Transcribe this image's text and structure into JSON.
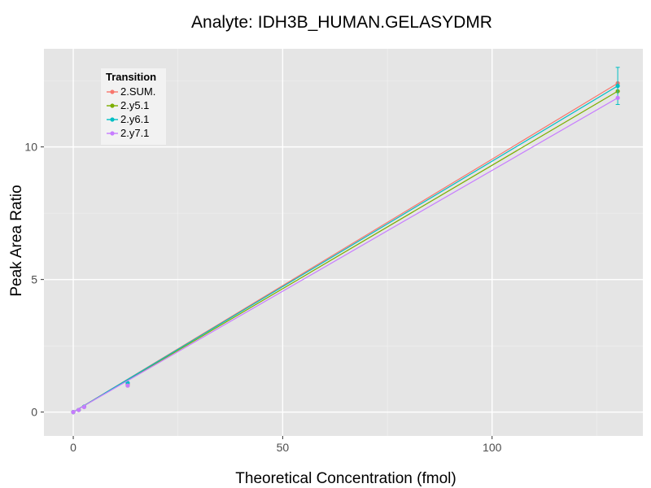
{
  "chart_data": {
    "type": "line",
    "title": "Analyte: IDH3B_HUMAN.GELASYDMR",
    "xlabel": "Theoretical Concentration (fmol)",
    "ylabel": "Peak Area Ratio",
    "xlim": [
      -7,
      136
    ],
    "ylim": [
      -0.9,
      13.7
    ],
    "x_ticks": [
      0,
      50,
      100
    ],
    "y_ticks": [
      0,
      5,
      10
    ],
    "x_tick_labels": [
      "0",
      "50",
      "100"
    ],
    "y_tick_labels": [
      "0",
      "5",
      "10"
    ],
    "grid": true,
    "legend": {
      "title": "Transition",
      "position": "top-left"
    },
    "series": [
      {
        "name": "2.SUM.",
        "color": "#F8766D",
        "x": [
          0,
          1.3,
          2.6,
          13,
          130
        ],
        "y": [
          0.0,
          0.08,
          0.2,
          1.05,
          12.4
        ],
        "fit_end": 12.4,
        "error": [
          null,
          null,
          null,
          null,
          0.0
        ]
      },
      {
        "name": "2.y5.1",
        "color": "#7CAE00",
        "x": [
          0,
          1.3,
          2.6,
          13,
          130
        ],
        "y": [
          0.0,
          0.08,
          0.2,
          1.0,
          12.1
        ],
        "fit_end": 12.1,
        "error": [
          null,
          null,
          null,
          null,
          0.0
        ]
      },
      {
        "name": "2.y6.1",
        "color": "#00BFC4",
        "x": [
          0,
          1.3,
          2.6,
          13,
          130
        ],
        "y": [
          0.0,
          0.08,
          0.2,
          1.1,
          12.3
        ],
        "fit_end": 12.3,
        "error": [
          null,
          null,
          null,
          null,
          0.7
        ]
      },
      {
        "name": "2.y7.1",
        "color": "#C77CFF",
        "x": [
          0,
          1.3,
          2.6,
          13,
          130
        ],
        "y": [
          0.0,
          0.08,
          0.19,
          1.0,
          11.85
        ],
        "fit_end": 11.85,
        "error": [
          null,
          null,
          null,
          null,
          0.0
        ]
      }
    ]
  }
}
